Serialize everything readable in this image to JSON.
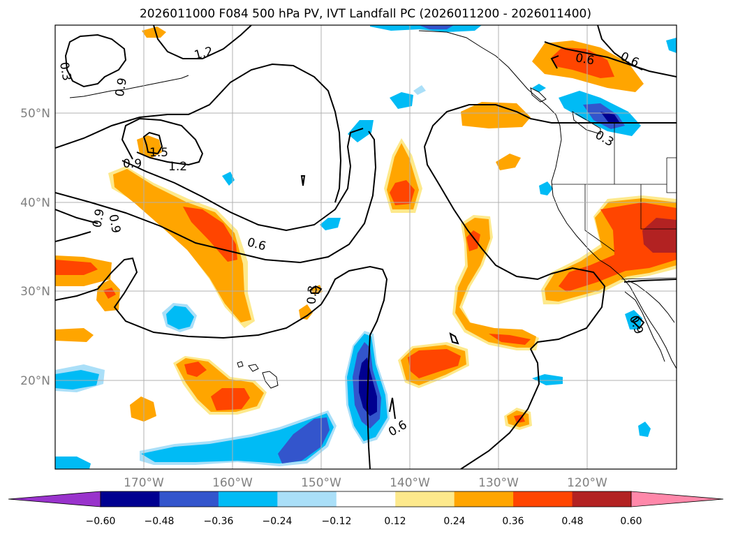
{
  "title": "2026011000 F084 500 hPa PV, IVT Landfall PC (2026011200 - 2026011400)",
  "map": {
    "lon_labels": [
      "170°W",
      "160°W",
      "150°W",
      "140°W",
      "130°W",
      "120°W"
    ],
    "lat_labels": [
      "50°N",
      "40°N",
      "30°N",
      "20°N"
    ],
    "contour_labels": [
      "0.3",
      "0.9",
      "1.2",
      "1.5",
      "1.2",
      "0.9",
      "0.9",
      "0.9",
      "0.6",
      "0.3",
      "0.6",
      "0.6",
      "0.6",
      "0.3",
      "0.9"
    ]
  },
  "colorbar": {
    "ticks": [
      "−0.60",
      "−0.48",
      "−0.36",
      "−0.24",
      "−0.12",
      "0.12",
      "0.24",
      "0.36",
      "0.48",
      "0.60"
    ],
    "colors": {
      "under": "#9933cc",
      "bins": [
        "#000090",
        "#3355cc",
        "#00bbf5",
        "#aadff8",
        "#ffffff",
        "#fde98c",
        "#ffa500",
        "#ff4500",
        "#b22222"
      ],
      "over": "#ff88aa"
    }
  }
}
